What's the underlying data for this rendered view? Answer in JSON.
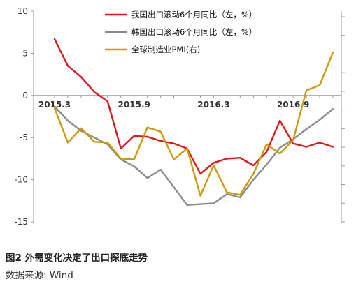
{
  "caption": "图2 外需变化决定了出口探底走势",
  "source": "数据来源: Wind",
  "chart_data": {
    "type": "line",
    "x_tick_labels": [
      "2015.3",
      "2015.9",
      "2016.3",
      "2016.9"
    ],
    "x_tick_index": [
      0,
      6,
      12,
      18
    ],
    "left_axis": {
      "ylim": [
        -15,
        10
      ],
      "ticks": [
        10,
        5,
        0,
        -5,
        -10,
        -15
      ]
    },
    "right_axis": {
      "ticks_shown": false
    },
    "legend_placement": "top-center",
    "series": [
      {
        "name": "我国出口滚动6个月同比（左，%）",
        "color": "#e3151b",
        "axis": "left",
        "values": [
          6.7,
          3.5,
          2.2,
          0.4,
          -0.7,
          -6.3,
          -4.8,
          -4.9,
          -5.4,
          -5.7,
          -6.3,
          -9.3,
          -8.0,
          -7.5,
          -7.4,
          -8.3,
          -6.7,
          -3.0,
          -5.7,
          -6.1,
          -5.6,
          -6.1
        ]
      },
      {
        "name": "韩国出口滚动6个月同比（左，%）",
        "color": "#8c8c8c",
        "axis": "left",
        "values": [
          -1.3,
          -3.0,
          -4.2,
          -5.0,
          -5.8,
          -7.6,
          -8.4,
          -9.8,
          -8.8,
          -10.9,
          -13.0,
          -12.9,
          -12.8,
          -11.7,
          -12.1,
          -10.0,
          -8.2,
          -6.2,
          -5.2,
          -4.0,
          -2.9,
          -1.6
        ]
      },
      {
        "name": "全球制造业PMI(右)",
        "color": "#c99a0c",
        "axis": "right",
        "values": [
          -1.5,
          -5.6,
          -3.9,
          -5.5,
          -5.6,
          -7.5,
          -7.6,
          -3.8,
          -4.3,
          -7.6,
          -6.3,
          -11.9,
          -8.3,
          -11.5,
          -11.8,
          -9.3,
          -5.8,
          -6.9,
          -5.3,
          0.6,
          1.2,
          5.1
        ]
      }
    ]
  }
}
